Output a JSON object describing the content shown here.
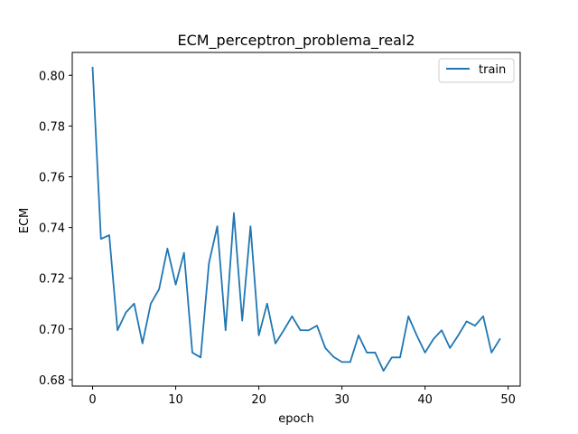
{
  "chart_data": {
    "type": "line",
    "title": "ECM_perceptron_problema_real2",
    "xlabel": "epoch",
    "ylabel": "ECM",
    "xlim": [
      -2.45,
      51.45
    ],
    "ylim": [
      0.6775,
      0.809
    ],
    "xticks": [
      0,
      10,
      20,
      30,
      40,
      50
    ],
    "xtick_labels": [
      "0",
      "10",
      "20",
      "30",
      "40",
      "50"
    ],
    "yticks": [
      0.68,
      0.7,
      0.72,
      0.74,
      0.76,
      0.78,
      0.8
    ],
    "ytick_labels": [
      "0.68",
      "0.70",
      "0.72",
      "0.74",
      "0.76",
      "0.78",
      "0.80"
    ],
    "grid": false,
    "legend_position": "top-right",
    "series": [
      {
        "name": "train",
        "color": "#1f77b4",
        "x": [
          0,
          1,
          2,
          3,
          4,
          5,
          6,
          7,
          8,
          9,
          10,
          11,
          12,
          13,
          14,
          15,
          16,
          17,
          18,
          19,
          20,
          21,
          22,
          23,
          24,
          25,
          26,
          27,
          28,
          29,
          30,
          31,
          32,
          33,
          34,
          35,
          36,
          37,
          38,
          39,
          40,
          41,
          42,
          43,
          44,
          45,
          46,
          47,
          48,
          49
        ],
        "y": [
          0.803,
          0.7355,
          0.737,
          0.6995,
          0.7065,
          0.71,
          0.6943,
          0.71,
          0.7157,
          0.7317,
          0.7175,
          0.73,
          0.6907,
          0.6888,
          0.726,
          0.7405,
          0.6995,
          0.7457,
          0.7033,
          0.7405,
          0.6975,
          0.71,
          0.6943,
          0.6995,
          0.705,
          0.6995,
          0.6995,
          0.7013,
          0.6925,
          0.689,
          0.687,
          0.687,
          0.6975,
          0.6907,
          0.6907,
          0.6835,
          0.6888,
          0.6888,
          0.705,
          0.6975,
          0.6907,
          0.696,
          0.6995,
          0.6925,
          0.6975,
          0.703,
          0.7013,
          0.705,
          0.6907,
          0.696
        ]
      }
    ]
  }
}
